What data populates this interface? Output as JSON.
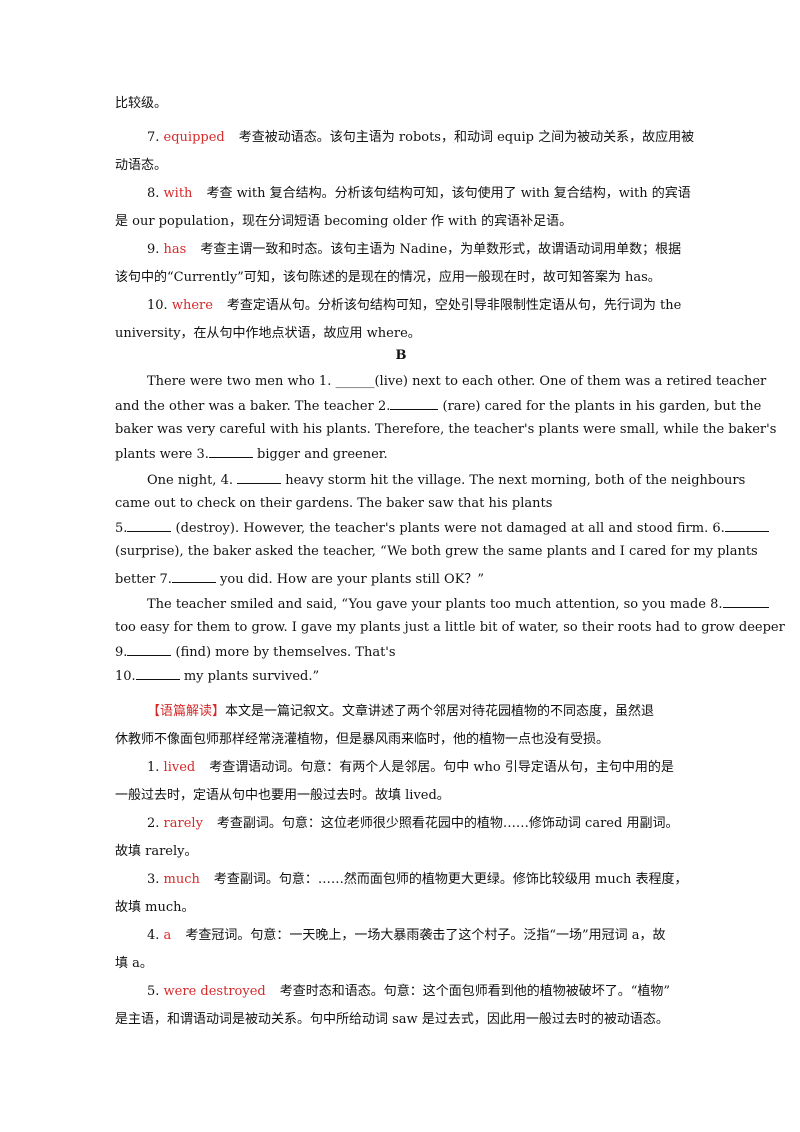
{
  "upper": {
    "l0": "比较级。",
    "i7_num": "7. ",
    "i7_ans": "equipped",
    "i7_t1": "考查被动语态。该句主语为 robots，和动词 equip 之间为被动关系，故应用被",
    "i7_t2": "动语态。",
    "i8_num": "8. ",
    "i8_ans": "with",
    "i8_t1": "考查 with 复合结构。分析该句结构可知，该句使用了 with 复合结构，with 的宾语",
    "i8_t2": "是 our population，现在分词短语 becoming older 作 with 的宾语补足语。",
    "i9_num": "9. ",
    "i9_ans": "has",
    "i9_t1": "考查主谓一致和时态。该句主语为 Nadine，为单数形式，故谓语动词用单数；根据",
    "i9_t2": "该句中的“Currently”可知，该句陈述的是现在的情况，应用一般现在时，故可知答案为 has。",
    "i10_num": "10. ",
    "i10_ans": "where",
    "i10_t1": "考查定语从句。分析该句结构可知，空处引导非限制性定语从句，先行词为 the",
    "i10_t2": "university，在从句中作地点状语，故应用 where。"
  },
  "section_b": {
    "heading": "B",
    "p1_l1a": "There were two men who 1. ______(live) next to each other. One of them was a retired teacher",
    "p1_l2a": "and the other was a baker. The teacher 2.",
    "p1_l2b": " (rare) cared for the plants in his garden, but the",
    "p1_l3": "baker was very careful with his plants. Therefore, the teacher's plants were small, while the baker's",
    "p1_l4a": "plants were 3.",
    "p1_l4b": " bigger and greener.",
    "p2_l1a": "One night, 4. ",
    "p2_l1b": " heavy storm hit the village. The next morning, both of the neighbours",
    "p2_l2": "came out to check on their gardens. The baker saw that his plants",
    "p2_l3a": "5.",
    "p2_l3b": " (destroy). However, the teacher's plants were not damaged at all and stood firm. 6.",
    "p2_l4": "(surprise), the baker asked the teacher, “We both grew the same plants and I cared for my plants",
    "p2_l5a": "better 7.",
    "p2_l5b": " you did. How are your plants still OK？”",
    "p3_l1a": "The teacher smiled and said, “You gave your plants too much attention, so you made 8.",
    "p3_l2": "too easy for them to grow. I gave my plants just a little bit of water, so their roots had to grow deeper",
    "p3_l3a": "9.",
    "p3_l3b": " (find) more by themselves. That's",
    "p3_l4a": "10.",
    "p3_l4b": " my plants survived.”"
  },
  "analysis": {
    "tag": "【语篇解读】",
    "t1": "本文是一篇记叙文。文章讲述了两个邻居对待花园植物的不同态度，虽然退",
    "t2": "休教师不像面包师那样经常浇灌植物，但是暴风雨来临时，他的植物一点也没有受损。"
  },
  "answers": {
    "a1_num": "1. ",
    "a1_ans": "lived",
    "a1_t1": "考查谓语动词。句意：有两个人是邻居。句中 who 引导定语从句，主句中用的是",
    "a1_t2": "一般过去时，定语从句中也要用一般过去时。故填 lived。",
    "a2_num": "2. ",
    "a2_ans": "rarely",
    "a2_t1": "考查副词。句意：这位老师很少照看花园中的植物……修饰动词 cared 用副词。",
    "a2_t2": "故填 rarely。",
    "a3_num": "3. ",
    "a3_ans": "much",
    "a3_t1": "考查副词。句意：……然而面包师的植物更大更绿。修饰比较级用 much 表程度，",
    "a3_t2": "故填 much。",
    "a4_num": "4. ",
    "a4_ans": "a",
    "a4_t1": "考查冠词。句意：一天晚上，一场大暴雨袭击了这个村子。泛指“一场”用冠词 a，故",
    "a4_t2": "填 a。",
    "a5_num": "5. ",
    "a5_ans": "were destroyed",
    "a5_t1": "考查时态和语态。句意：这个面包师看到他的植物被破坏了。“植物”",
    "a5_t2": "是主语，和谓语动词是被动关系。句中所给动词 saw 是过去式，因此用一般过去时的被动语态。"
  },
  "colors": {
    "answer": "#d42a2a",
    "text": "#111111"
  }
}
